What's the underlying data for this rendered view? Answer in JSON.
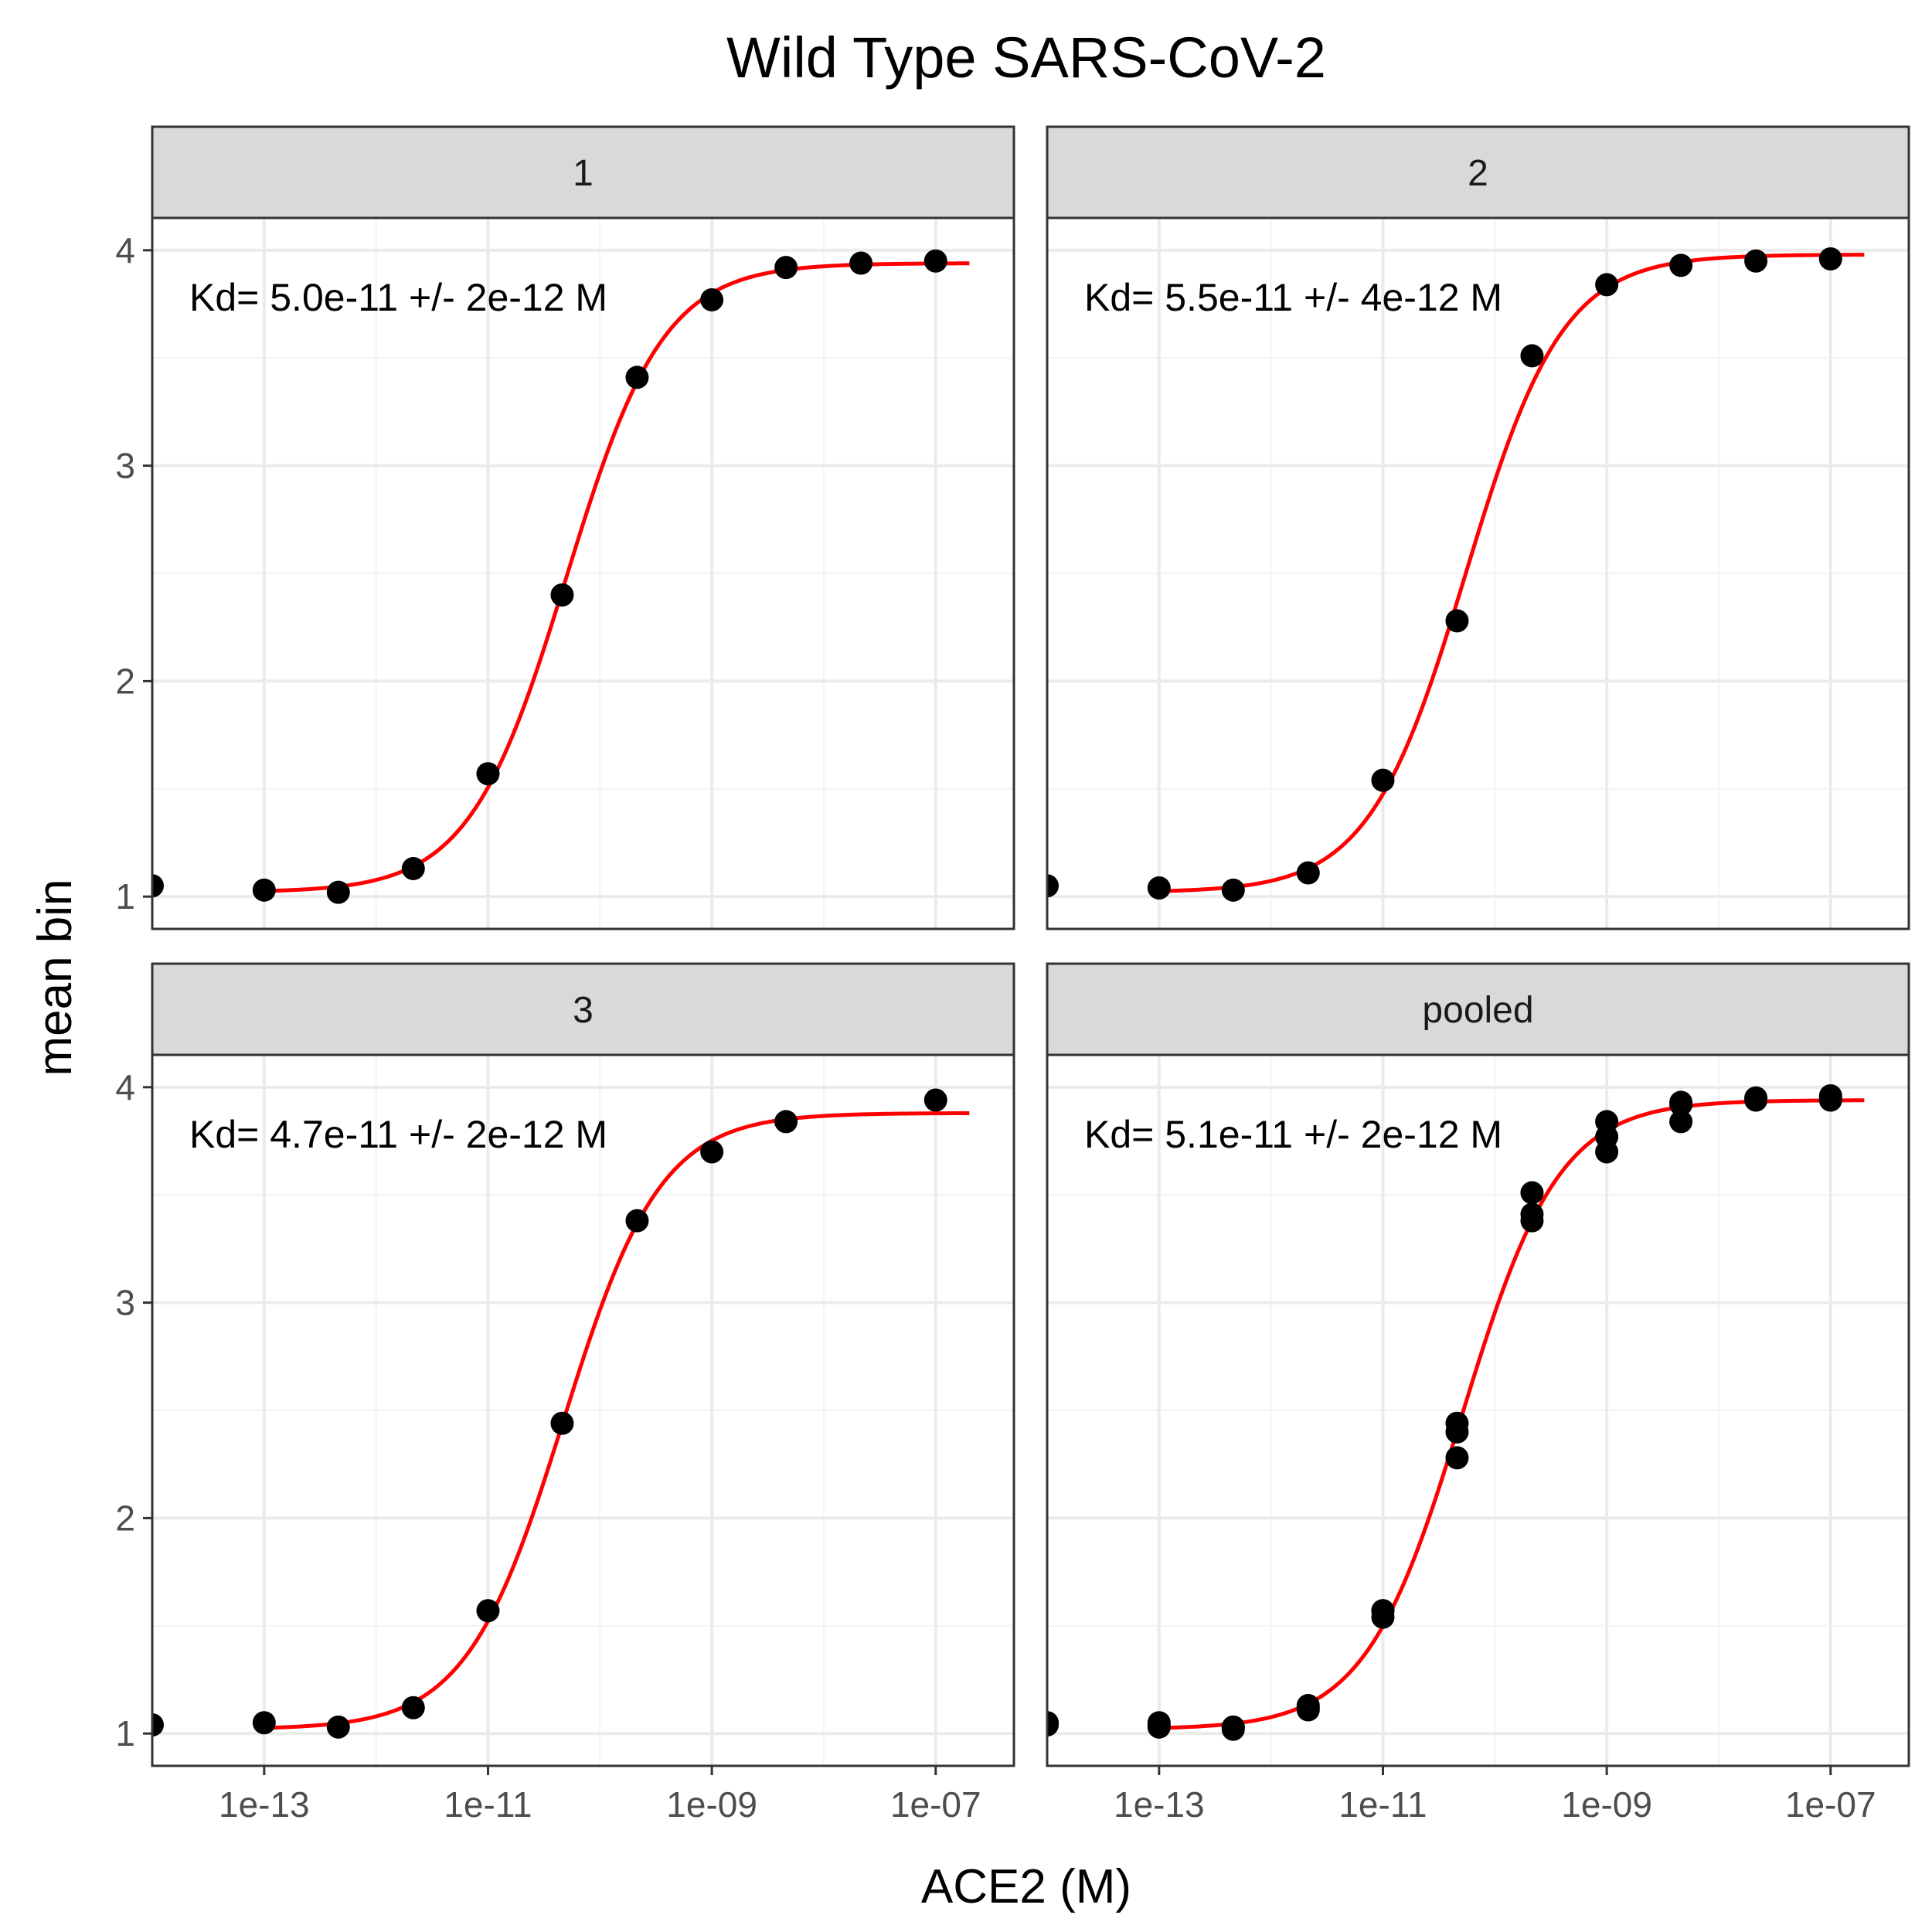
{
  "chart_data": {
    "type": "scatter",
    "title": "Wild Type SARS-CoV-2",
    "xlabel": "ACE2 (M)",
    "ylabel": "mean bin",
    "x_scale": "log10",
    "xlim": [
      1e-14,
      5e-07
    ],
    "ylim": [
      0.85,
      4.15
    ],
    "x_ticks": [
      1e-13,
      1e-11,
      1e-09,
      1e-07
    ],
    "x_tick_labels": [
      "1e-13",
      "1e-11",
      "1e-09",
      "1e-07"
    ],
    "y_ticks": [
      1,
      2,
      3,
      4
    ],
    "y_tick_labels": [
      "1",
      "2",
      "3",
      "4"
    ],
    "grid": true,
    "fit_color": "#ff0000",
    "point_color": "#000000",
    "panels": [
      {
        "label": "1",
        "annotation": "Kd= 5.0e-11 +/- 2e-12 M",
        "fit": {
          "kd": 5e-11,
          "bottom": 1.02,
          "top": 3.94,
          "x_range": [
            1e-13,
            2e-07
          ]
        },
        "points": [
          {
            "x": 1e-14,
            "y": 1.05
          },
          {
            "x": 1e-13,
            "y": 1.03
          },
          {
            "x": 4.6e-13,
            "y": 1.02
          },
          {
            "x": 2.15e-12,
            "y": 1.13
          },
          {
            "x": 1e-11,
            "y": 1.57
          },
          {
            "x": 4.6e-11,
            "y": 2.4
          },
          {
            "x": 2.15e-10,
            "y": 3.41
          },
          {
            "x": 1e-09,
            "y": 3.77
          },
          {
            "x": 4.6e-09,
            "y": 3.92
          },
          {
            "x": 2.15e-08,
            "y": 3.94
          },
          {
            "x": 1e-07,
            "y": 3.95
          }
        ]
      },
      {
        "label": "2",
        "annotation": "Kd= 5.5e-11 +/- 4e-12 M",
        "fit": {
          "kd": 5.5e-11,
          "bottom": 1.02,
          "top": 3.98,
          "x_range": [
            1e-13,
            2e-07
          ]
        },
        "points": [
          {
            "x": 1e-14,
            "y": 1.05
          },
          {
            "x": 1e-13,
            "y": 1.04
          },
          {
            "x": 4.6e-13,
            "y": 1.03
          },
          {
            "x": 2.15e-12,
            "y": 1.11
          },
          {
            "x": 1e-11,
            "y": 1.54
          },
          {
            "x": 4.6e-11,
            "y": 2.28
          },
          {
            "x": 2.15e-10,
            "y": 3.51
          },
          {
            "x": 1e-09,
            "y": 3.84
          },
          {
            "x": 4.6e-09,
            "y": 3.93
          },
          {
            "x": 2.15e-08,
            "y": 3.95
          },
          {
            "x": 1e-07,
            "y": 3.96
          }
        ]
      },
      {
        "label": "3",
        "annotation": "Kd= 4.7e-11 +/- 2e-12 M",
        "fit": {
          "kd": 4.7e-11,
          "bottom": 1.02,
          "top": 3.88,
          "x_range": [
            1e-13,
            2e-07
          ]
        },
        "points": [
          {
            "x": 1e-14,
            "y": 1.04
          },
          {
            "x": 1e-13,
            "y": 1.05
          },
          {
            "x": 4.6e-13,
            "y": 1.03
          },
          {
            "x": 2.15e-12,
            "y": 1.12
          },
          {
            "x": 1e-11,
            "y": 1.57
          },
          {
            "x": 4.6e-11,
            "y": 2.44
          },
          {
            "x": 2.15e-10,
            "y": 3.38
          },
          {
            "x": 1e-09,
            "y": 3.7
          },
          {
            "x": 4.6e-09,
            "y": 3.84
          },
          {
            "x": 1e-07,
            "y": 3.94
          }
        ]
      },
      {
        "label": "pooled",
        "annotation": "Kd= 5.1e-11 +/- 2e-12 M",
        "fit": {
          "kd": 5.1e-11,
          "bottom": 1.02,
          "top": 3.94,
          "x_range": [
            1e-13,
            2e-07
          ]
        },
        "points": [
          {
            "x": 1e-14,
            "y": 1.05
          },
          {
            "x": 1e-14,
            "y": 1.05
          },
          {
            "x": 1e-14,
            "y": 1.04
          },
          {
            "x": 1e-13,
            "y": 1.03
          },
          {
            "x": 1e-13,
            "y": 1.04
          },
          {
            "x": 1e-13,
            "y": 1.05
          },
          {
            "x": 4.6e-13,
            "y": 1.02
          },
          {
            "x": 4.6e-13,
            "y": 1.03
          },
          {
            "x": 4.6e-13,
            "y": 1.03
          },
          {
            "x": 2.15e-12,
            "y": 1.13
          },
          {
            "x": 2.15e-12,
            "y": 1.11
          },
          {
            "x": 2.15e-12,
            "y": 1.12
          },
          {
            "x": 1e-11,
            "y": 1.57
          },
          {
            "x": 1e-11,
            "y": 1.54
          },
          {
            "x": 1e-11,
            "y": 1.57
          },
          {
            "x": 4.6e-11,
            "y": 2.4
          },
          {
            "x": 4.6e-11,
            "y": 2.28
          },
          {
            "x": 4.6e-11,
            "y": 2.44
          },
          {
            "x": 2.15e-10,
            "y": 3.41
          },
          {
            "x": 2.15e-10,
            "y": 3.51
          },
          {
            "x": 2.15e-10,
            "y": 3.38
          },
          {
            "x": 1e-09,
            "y": 3.77
          },
          {
            "x": 1e-09,
            "y": 3.84
          },
          {
            "x": 1e-09,
            "y": 3.7
          },
          {
            "x": 4.6e-09,
            "y": 3.92
          },
          {
            "x": 4.6e-09,
            "y": 3.93
          },
          {
            "x": 4.6e-09,
            "y": 3.84
          },
          {
            "x": 2.15e-08,
            "y": 3.94
          },
          {
            "x": 2.15e-08,
            "y": 3.95
          },
          {
            "x": 1e-07,
            "y": 3.95
          },
          {
            "x": 1e-07,
            "y": 3.96
          },
          {
            "x": 1e-07,
            "y": 3.94
          }
        ]
      }
    ]
  }
}
